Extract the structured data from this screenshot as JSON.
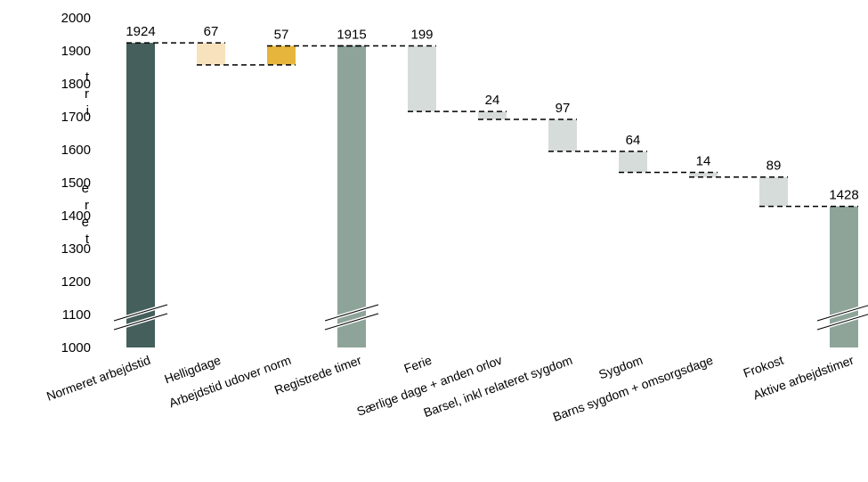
{
  "colors": {
    "normeret": "#445f5c",
    "helligdage": "#f7e2bd",
    "udover": "#e5b53c",
    "registrede": "#8ea499",
    "decrease": "#d6dcda",
    "aktive": "#8ea499",
    "connector": "#000000"
  },
  "side_fragments": [
    "t",
    "r",
    "i",
    "e",
    "r",
    "e",
    "t"
  ],
  "chart_data": {
    "type": "waterfall",
    "title": "",
    "xlabel": "",
    "ylabel": "",
    "ylim": [
      1000,
      2000
    ],
    "y_ticks": [
      "2000",
      "1900",
      "1800",
      "1700",
      "1600",
      "1500",
      "1400",
      "1300",
      "1200",
      "1100",
      "1000"
    ],
    "categories": [
      "Normeret arbejdstid",
      "Helligdage",
      "Arbejdstid udover norm",
      "Registrede timer",
      "Ferie",
      "Særlige dage + anden orlov",
      "Barsel, inkl relateret sygdom",
      "Sygdom",
      "Barns sygdom + omsorgsdage",
      "Frokost",
      "Aktive arbejdstimer"
    ],
    "bars": [
      {
        "kind": "total",
        "start": 0,
        "end": 1924,
        "label": "1924",
        "color": "normeret",
        "broken": true
      },
      {
        "kind": "float",
        "start": 1924,
        "end": 1857,
        "label": "67",
        "color": "helligdage"
      },
      {
        "kind": "float",
        "start": 1858,
        "end": 1915,
        "label": "57",
        "color": "udover"
      },
      {
        "kind": "total",
        "start": 0,
        "end": 1915,
        "label": "1915",
        "color": "registrede",
        "broken": true
      },
      {
        "kind": "float",
        "start": 1915,
        "end": 1716,
        "label": "199",
        "color": "decrease"
      },
      {
        "kind": "float",
        "start": 1716,
        "end": 1692,
        "label": "24",
        "color": "decrease"
      },
      {
        "kind": "float",
        "start": 1692,
        "end": 1595,
        "label": "97",
        "color": "decrease"
      },
      {
        "kind": "float",
        "start": 1595,
        "end": 1531,
        "label": "64",
        "color": "decrease"
      },
      {
        "kind": "float",
        "start": 1531,
        "end": 1517,
        "label": "14",
        "color": "decrease"
      },
      {
        "kind": "float",
        "start": 1517,
        "end": 1428,
        "label": "89",
        "color": "decrease"
      },
      {
        "kind": "total",
        "start": 0,
        "end": 1428,
        "label": "1428",
        "color": "aktive",
        "broken": true
      }
    ]
  }
}
